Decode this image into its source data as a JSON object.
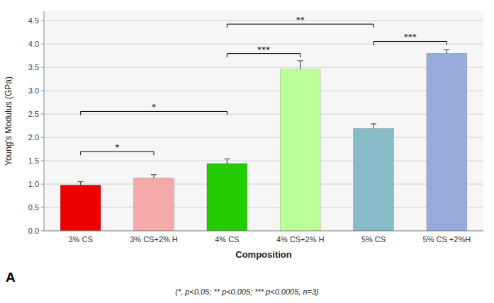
{
  "chart_data": {
    "type": "bar",
    "categories": [
      "3% CS",
      "3% CS+2% H",
      "4% CS",
      "4% CS+2% H",
      "5% CS",
      "5% CS +2%H"
    ],
    "values": [
      0.98,
      1.13,
      1.44,
      3.46,
      2.19,
      3.8
    ],
    "errors": [
      0.07,
      0.07,
      0.1,
      0.18,
      0.1,
      0.08
    ],
    "colors": [
      "#ee0000",
      "#f5aaaa",
      "#22cc00",
      "#bbff99",
      "#88bbc8",
      "#99aadd"
    ],
    "ylabel": "Young's Modulus (GPa)",
    "xlabel": "Composition",
    "ylim": [
      0,
      4.7
    ],
    "yticks": [
      {
        "value": 0,
        "label": "0.0"
      },
      0.5,
      {
        "value": 1.0,
        "label": "1.0"
      },
      1.5,
      {
        "value": 2.0,
        "label": "2.0"
      },
      2.5,
      {
        "value": 3.0,
        "label": "3.0"
      },
      3.5,
      {
        "value": 4.0,
        "label": "4.0"
      },
      4.5
    ],
    "grid": true,
    "brackets": [
      {
        "x1": "3% CS",
        "x2": "3% CS+2% H",
        "y": 1.62,
        "label": "*"
      },
      {
        "x1": "3% CS",
        "x2": "4% CS",
        "y": 2.48,
        "label": "*"
      },
      {
        "x1": "4% CS",
        "x2": "4% CS+2% H",
        "y": 3.72,
        "label": "***"
      },
      {
        "x1": "4% CS",
        "x2": "5% CS",
        "y": 4.35,
        "label": "**"
      },
      {
        "x1": "5% CS",
        "x2": "5% CS +2%H",
        "y": 3.98,
        "label": "***"
      }
    ],
    "panel_label": "A",
    "footnote": "(*, p<0.05; ** p<0.005; *** p<0.0005, n=3)"
  }
}
